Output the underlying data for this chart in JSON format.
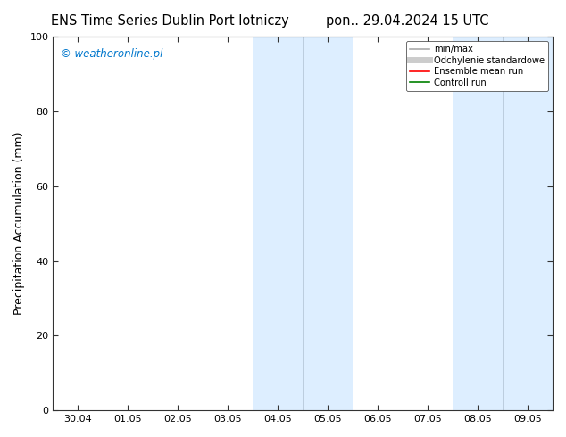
{
  "title_left": "ENS Time Series Dublin Port lotniczy",
  "title_right": "pon.. 29.04.2024 15 UTC",
  "ylabel": "Precipitation Accumulation (mm)",
  "watermark": "© weatheronline.pl",
  "watermark_color": "#0077cc",
  "ylim": [
    0,
    100
  ],
  "xtick_labels": [
    "30.04",
    "01.05",
    "02.05",
    "03.05",
    "04.05",
    "05.05",
    "06.05",
    "07.05",
    "08.05",
    "09.05"
  ],
  "xtick_positions": [
    0,
    1,
    2,
    3,
    4,
    5,
    6,
    7,
    8,
    9
  ],
  "ytick_positions": [
    0,
    20,
    40,
    60,
    80,
    100
  ],
  "shaded_regions": [
    {
      "xmin": 3.5,
      "xmax": 4.5,
      "color": "#ddeeff"
    },
    {
      "xmin": 4.5,
      "xmax": 5.5,
      "color": "#ddeeff"
    },
    {
      "xmin": 7.5,
      "xmax": 8.5,
      "color": "#ddeeff"
    },
    {
      "xmin": 8.5,
      "xmax": 9.5,
      "color": "#ddeeff"
    }
  ],
  "shade_dividers": [
    4.5,
    8.5
  ],
  "legend_entries": [
    {
      "label": "min/max",
      "color": "#aaaaaa",
      "lw": 1.2,
      "style": "-"
    },
    {
      "label": "Odchylenie standardowe",
      "color": "#cccccc",
      "lw": 5,
      "style": "-"
    },
    {
      "label": "Ensemble mean run",
      "color": "red",
      "lw": 1.2,
      "style": "-"
    },
    {
      "label": "Controll run",
      "color": "green",
      "lw": 1.2,
      "style": "-"
    }
  ],
  "bg_color": "white",
  "spine_color": "#333333",
  "title_fontsize": 10.5,
  "label_fontsize": 9,
  "tick_fontsize": 8,
  "xlim": [
    -0.5,
    9.5
  ]
}
